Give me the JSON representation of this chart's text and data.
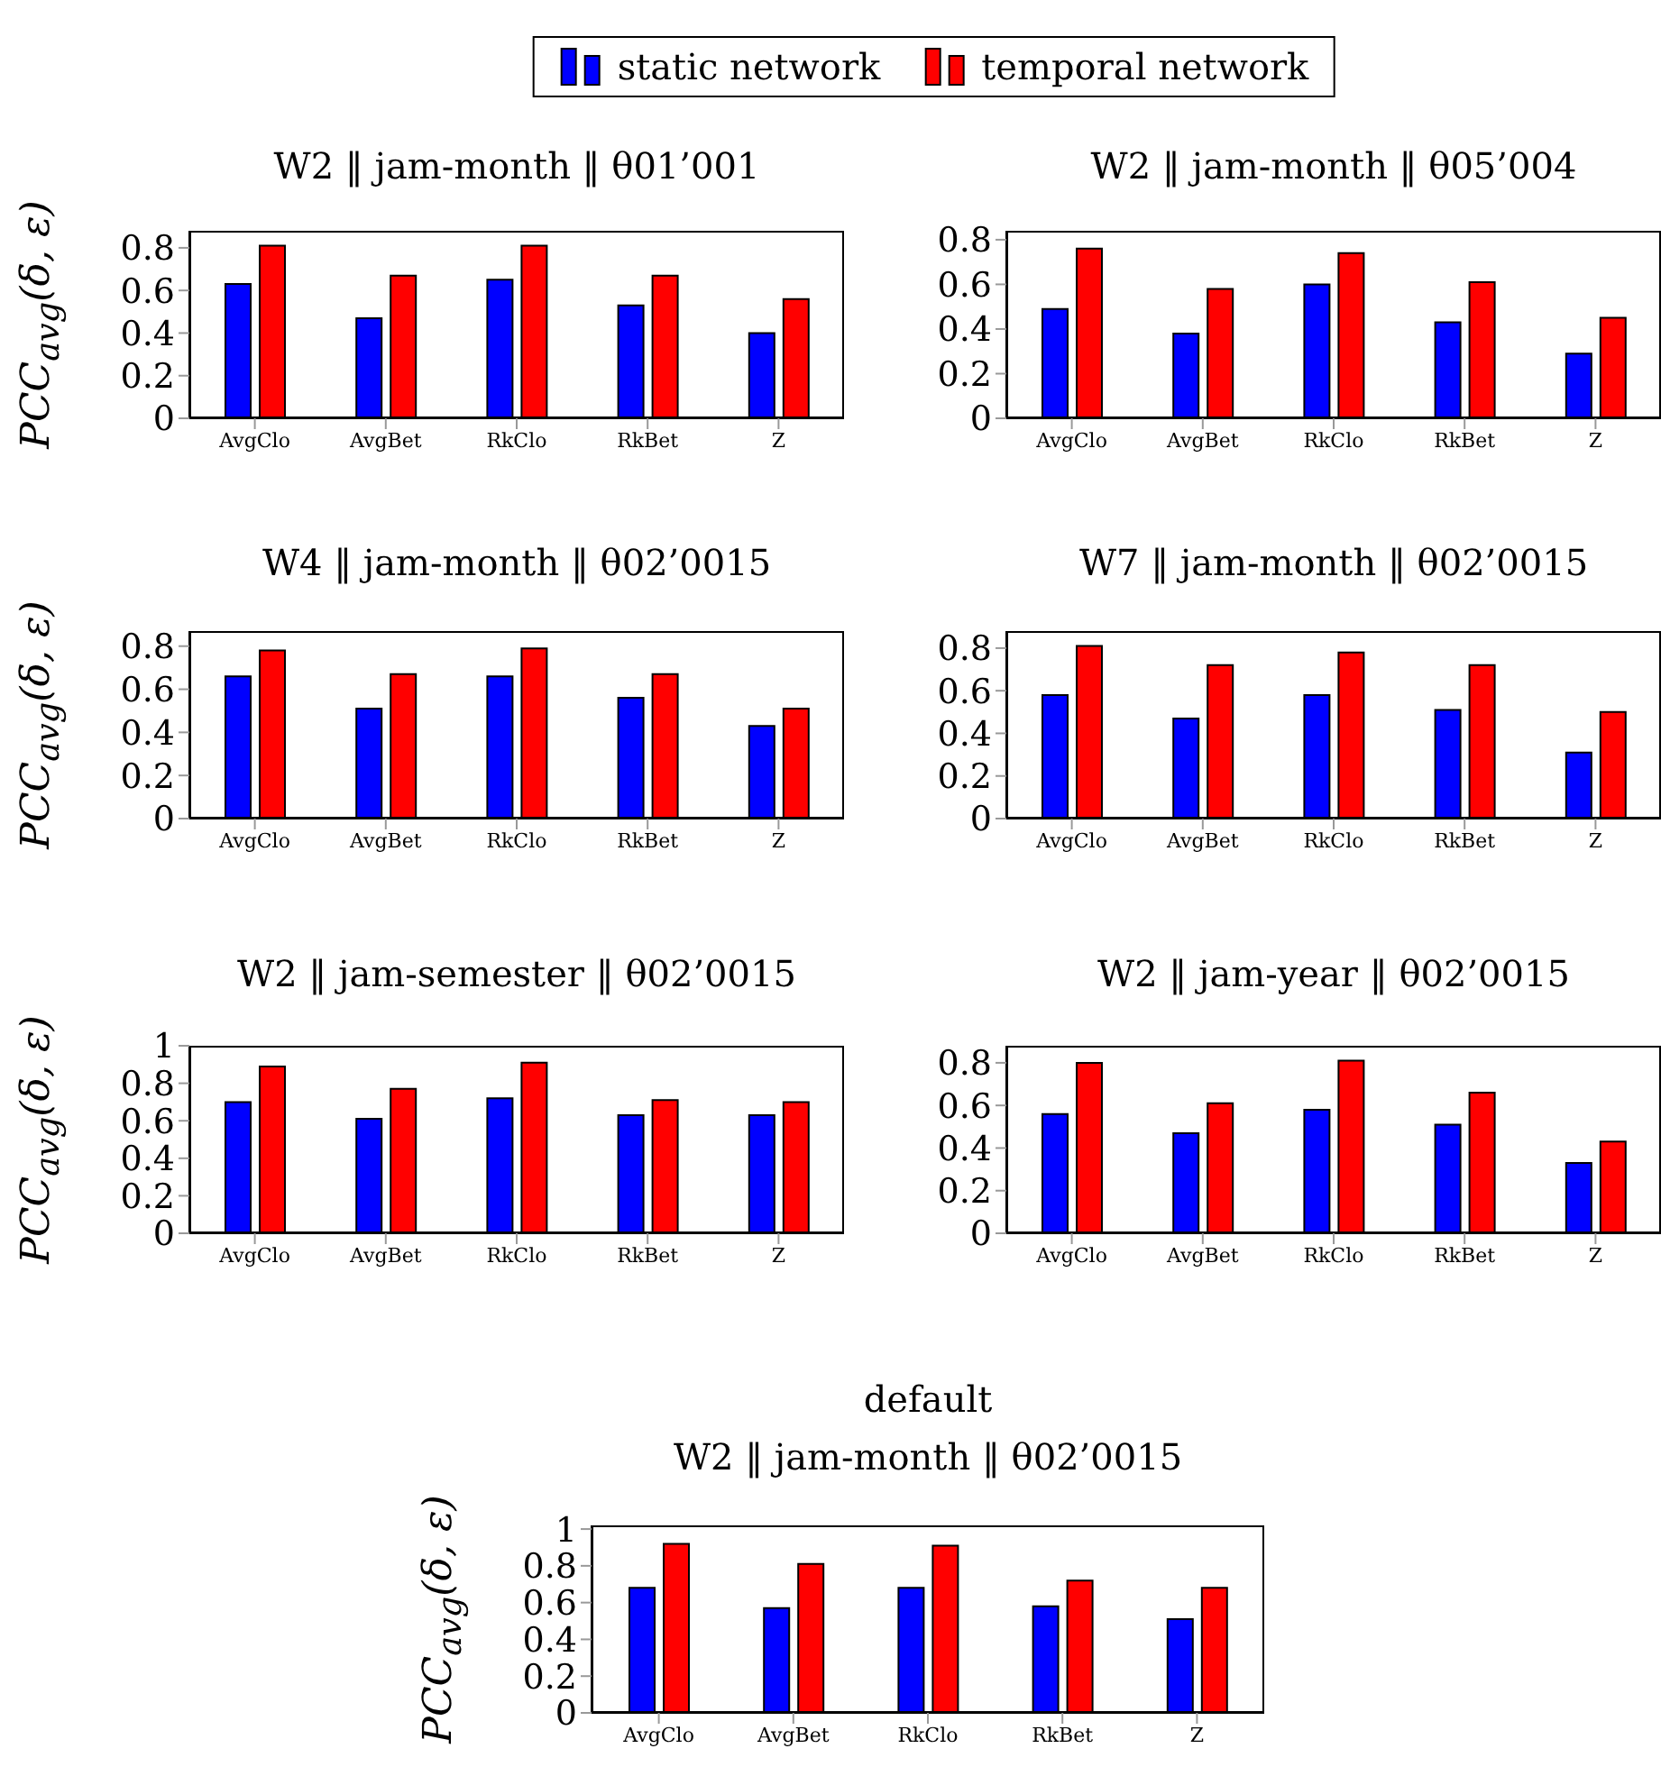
{
  "chart_data": [
    {
      "type": "bar",
      "title": "W2 ‖ jam-month ‖ θ01’001",
      "ylabel": "PCC$_{avg}$(δ, ε)",
      "categories": [
        "AvgClo",
        "AvgBet",
        "RkClo",
        "RkBet",
        "Z"
      ],
      "legend": "top",
      "series": [
        {
          "name": "static network",
          "color": "#0000ff",
          "values": [
            0.63,
            0.47,
            0.65,
            0.53,
            0.4
          ]
        },
        {
          "name": "temporal network",
          "color": "#ff0000",
          "values": [
            0.81,
            0.67,
            0.81,
            0.67,
            0.56
          ]
        }
      ],
      "ylim": [
        0,
        0.88
      ],
      "yticks": [
        0,
        0.2,
        0.4,
        0.6,
        0.8
      ]
    },
    {
      "type": "bar",
      "title": "W2 ‖ jam-month ‖ θ05’004",
      "categories": [
        "AvgClo",
        "AvgBet",
        "RkClo",
        "RkBet",
        "Z"
      ],
      "series": [
        {
          "color": "#0000ff",
          "values": [
            0.49,
            0.38,
            0.6,
            0.43,
            0.29
          ]
        },
        {
          "color": "#ff0000",
          "values": [
            0.76,
            0.58,
            0.74,
            0.61,
            0.45
          ]
        }
      ],
      "ylim": [
        0,
        0.84
      ],
      "yticks": [
        0,
        0.2,
        0.4,
        0.6,
        0.8
      ]
    },
    {
      "type": "bar",
      "title": "W4 ‖ jam-month ‖ θ02’0015",
      "ylabel": "PCC$_{avg}$(δ, ε)",
      "categories": [
        "AvgClo",
        "AvgBet",
        "RkClo",
        "RkBet",
        "Z"
      ],
      "series": [
        {
          "color": "#0000ff",
          "values": [
            0.66,
            0.51,
            0.66,
            0.56,
            0.43
          ]
        },
        {
          "color": "#ff0000",
          "values": [
            0.78,
            0.67,
            0.79,
            0.67,
            0.51
          ]
        }
      ],
      "ylim": [
        0,
        0.87
      ],
      "yticks": [
        0,
        0.2,
        0.4,
        0.6,
        0.8
      ]
    },
    {
      "type": "bar",
      "title": "W7 ‖ jam-month ‖ θ02’0015",
      "categories": [
        "AvgClo",
        "AvgBet",
        "RkClo",
        "RkBet",
        "Z"
      ],
      "series": [
        {
          "color": "#0000ff",
          "values": [
            0.58,
            0.47,
            0.58,
            0.51,
            0.31
          ]
        },
        {
          "color": "#ff0000",
          "values": [
            0.81,
            0.72,
            0.78,
            0.72,
            0.5
          ]
        }
      ],
      "ylim": [
        0,
        0.88
      ],
      "yticks": [
        0,
        0.2,
        0.4,
        0.6,
        0.8
      ]
    },
    {
      "type": "bar",
      "title": "W2 ‖ jam-semester ‖ θ02’0015",
      "ylabel": "PCC$_{avg}$(δ, ε)",
      "categories": [
        "AvgClo",
        "AvgBet",
        "RkClo",
        "RkBet",
        "Z"
      ],
      "series": [
        {
          "color": "#0000ff",
          "values": [
            0.7,
            0.61,
            0.72,
            0.63,
            0.63
          ]
        },
        {
          "color": "#ff0000",
          "values": [
            0.89,
            0.77,
            0.91,
            0.71,
            0.7
          ]
        }
      ],
      "ylim": [
        0,
        1
      ],
      "yticks": [
        0,
        0.2,
        0.4,
        0.6,
        0.8,
        1
      ]
    },
    {
      "type": "bar",
      "title": "W2 ‖ jam-year ‖ θ02’0015",
      "categories": [
        "AvgClo",
        "AvgBet",
        "RkClo",
        "RkBet",
        "Z"
      ],
      "series": [
        {
          "color": "#0000ff",
          "values": [
            0.56,
            0.47,
            0.58,
            0.51,
            0.33
          ]
        },
        {
          "color": "#ff0000",
          "values": [
            0.8,
            0.61,
            0.81,
            0.66,
            0.43
          ]
        }
      ],
      "ylim": [
        0,
        0.88
      ],
      "yticks": [
        0,
        0.2,
        0.4,
        0.6,
        0.8
      ]
    },
    {
      "type": "bar",
      "title": "default",
      "subtitle": "W2 ‖ jam-month ‖ θ02’0015",
      "ylabel": "PCC$_{avg}$(δ, ε)",
      "categories": [
        "AvgClo",
        "AvgBet",
        "RkClo",
        "RkBet",
        "Z"
      ],
      "series": [
        {
          "color": "#0000ff",
          "values": [
            0.68,
            0.57,
            0.68,
            0.58,
            0.51
          ]
        },
        {
          "color": "#ff0000",
          "values": [
            0.92,
            0.81,
            0.91,
            0.72,
            0.68
          ]
        }
      ],
      "ylim": [
        0,
        1.02
      ],
      "yticks": [
        0,
        0.2,
        0.4,
        0.6,
        0.8,
        1
      ]
    }
  ]
}
